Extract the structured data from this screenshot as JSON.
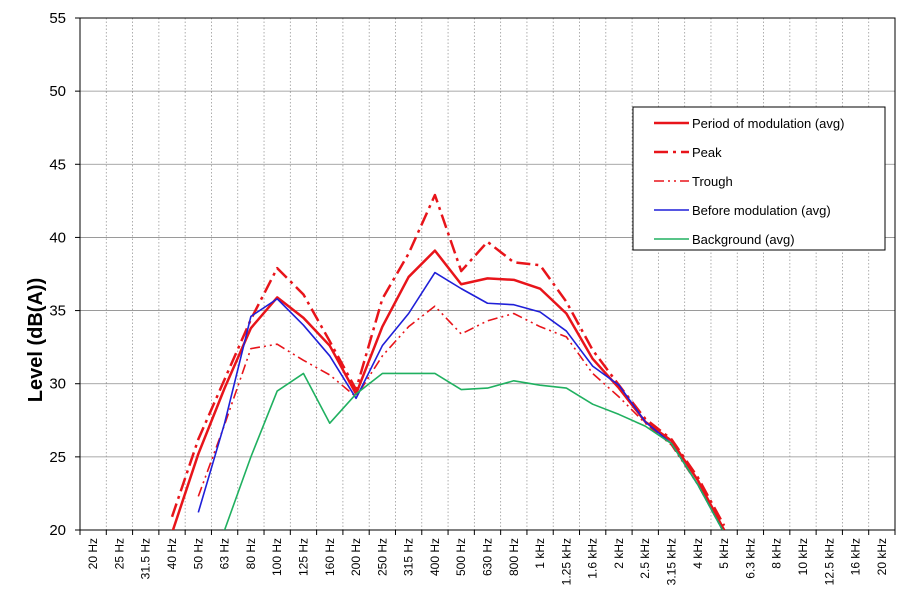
{
  "chart_data": {
    "type": "line",
    "title": "",
    "xlabel": "",
    "ylabel": "Level (dB(A))",
    "ylim": [
      20,
      55
    ],
    "yticks": [
      20,
      25,
      30,
      35,
      40,
      45,
      50,
      55
    ],
    "grid": true,
    "legend_position": "top-right",
    "categories": [
      "20 Hz",
      "25 Hz",
      "31.5 Hz",
      "40 Hz",
      "50 Hz",
      "63 Hz",
      "80 Hz",
      "100 Hz",
      "125 Hz",
      "160 Hz",
      "200 Hz",
      "250 Hz",
      "315 Hz",
      "400 Hz",
      "500 Hz",
      "630 Hz",
      "800 Hz",
      "1 kHz",
      "1.25 kHz",
      "1.6 kHz",
      "2 kHz",
      "2.5 kHz",
      "3.15 kHz",
      "4 kHz",
      "5 kHz",
      "6.3 kHz",
      "8 kHz",
      "10 kHz",
      "12.5 kHz",
      "16 kHz",
      "20 kHz"
    ],
    "series": [
      {
        "name": "Period of modulation (avg)",
        "color": "#e8141a",
        "style": "solid",
        "width": 2.5,
        "values": [
          null,
          null,
          null,
          19.8,
          25.2,
          29.7,
          33.8,
          35.9,
          34.5,
          32.6,
          29.3,
          33.9,
          37.3,
          39.1,
          36.8,
          37.2,
          37.1,
          36.5,
          34.8,
          31.7,
          29.7,
          27.4,
          26.1,
          23.4,
          20.0,
          null,
          null,
          null,
          null,
          null,
          null
        ]
      },
      {
        "name": "Peak",
        "color": "#e8141a",
        "style": "dashdot",
        "width": 2.5,
        "values": [
          null,
          null,
          null,
          20.9,
          26.2,
          30.3,
          34.4,
          37.9,
          36.1,
          32.9,
          29.6,
          35.8,
          38.9,
          42.9,
          37.7,
          39.7,
          38.3,
          38.1,
          35.6,
          32.3,
          29.9,
          27.6,
          26.2,
          23.6,
          20.3,
          null,
          null,
          null,
          null,
          null,
          null
        ]
      },
      {
        "name": "Trough",
        "color": "#e8141a",
        "style": "dashdotdot",
        "width": 1.6,
        "values": [
          null,
          null,
          null,
          null,
          22.3,
          27.2,
          32.4,
          32.7,
          31.6,
          30.6,
          29.1,
          31.9,
          33.9,
          35.3,
          33.4,
          34.3,
          34.8,
          33.9,
          33.2,
          30.7,
          29.1,
          27.3,
          25.8,
          23.1,
          19.8,
          null,
          null,
          null,
          null,
          null,
          null
        ]
      },
      {
        "name": "Before modulation (avg)",
        "color": "#1f1fd8",
        "style": "solid",
        "width": 1.6,
        "values": [
          null,
          null,
          null,
          null,
          21.2,
          27.3,
          34.6,
          35.8,
          34.0,
          31.9,
          29.0,
          32.6,
          34.8,
          37.6,
          36.5,
          35.5,
          35.4,
          34.9,
          33.6,
          31.2,
          29.9,
          27.4,
          25.9,
          23.1,
          19.8,
          null,
          null,
          null,
          null,
          null,
          null
        ]
      },
      {
        "name": "Background (avg)",
        "color": "#20b060",
        "style": "solid",
        "width": 1.6,
        "values": [
          null,
          null,
          null,
          null,
          null,
          20.0,
          25.0,
          29.5,
          30.7,
          27.3,
          29.3,
          30.7,
          30.7,
          30.7,
          29.6,
          29.7,
          30.2,
          29.9,
          29.7,
          28.6,
          27.9,
          27.1,
          25.9,
          23.1,
          19.8,
          null,
          null,
          null,
          null,
          null,
          null
        ]
      }
    ]
  }
}
